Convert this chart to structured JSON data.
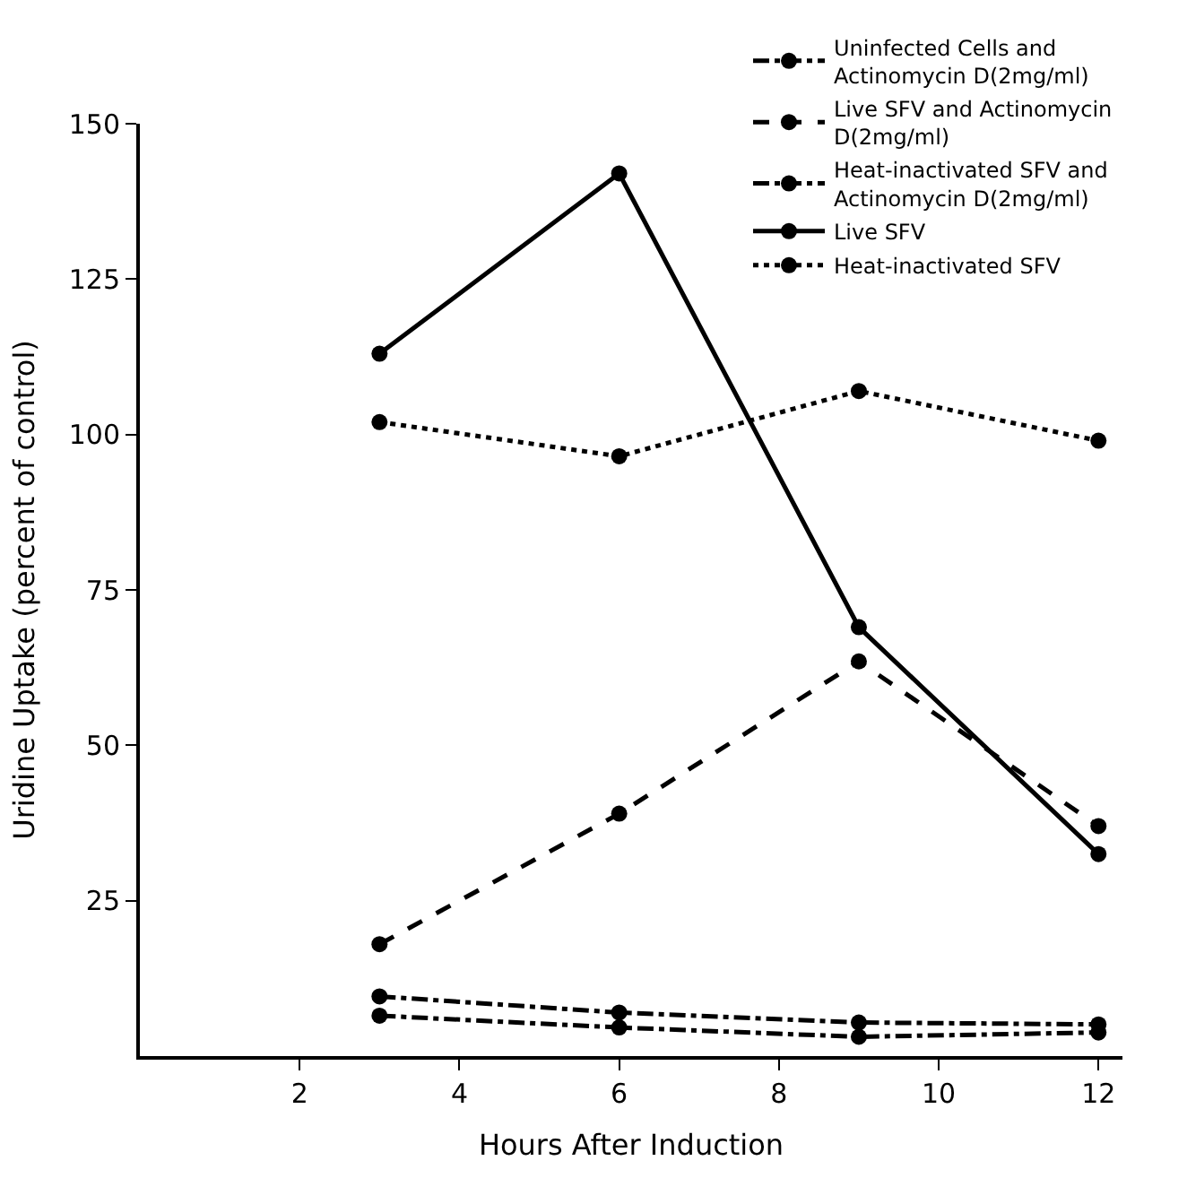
{
  "chart_data": {
    "type": "line",
    "xlabel": "Hours After Induction",
    "ylabel": "Uridine Uptake (percent of control)",
    "x": [
      3,
      6,
      9,
      12
    ],
    "xlim": [
      0,
      12.3
    ],
    "xticks": [
      2,
      4,
      6,
      8,
      10,
      12
    ],
    "ylim": [
      0,
      150
    ],
    "yticks": [
      25,
      50,
      75,
      100,
      125,
      150
    ],
    "legend": "top right",
    "marker": "circle",
    "series": [
      {
        "name": "Uninfected Cells and Actinomycin D(2mg/ml)",
        "color": "#000000",
        "line_style": "dashdot",
        "values": [
          9.6,
          7,
          5.4,
          5.1
        ]
      },
      {
        "name": "Live SFV and Actinomycin D(2mg/ml)",
        "color": "#000000",
        "line_style": "dashed",
        "values": [
          18,
          39,
          63.5,
          37
        ]
      },
      {
        "name": "Heat-inactivated SFV and Actinomycin D(2mg/ml)",
        "color": "#000000",
        "line_style": "dashdot",
        "values": [
          6.5,
          4.6,
          3.1,
          3.8
        ]
      },
      {
        "name": "Live SFV",
        "color": "#000000",
        "line_style": "solid",
        "values": [
          113,
          142,
          69,
          32.5
        ]
      },
      {
        "name": "Heat-inactivated SFV",
        "color": "#000000",
        "line_style": "dotted",
        "values": [
          102,
          96.5,
          107,
          99
        ]
      }
    ]
  }
}
